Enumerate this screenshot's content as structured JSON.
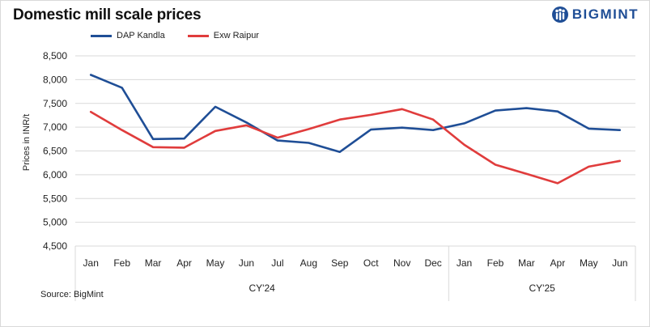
{
  "title": "Domestic mill scale prices",
  "logo": {
    "text": "BIGMINT",
    "icon": "bigmint-logo-icon"
  },
  "source": "Source: BigMint",
  "colors": {
    "dap": "#1f4e96",
    "exw": "#e03c3c",
    "grid": "#d9d9d9"
  },
  "chart_data": {
    "type": "line",
    "title": "Domestic mill scale prices",
    "ylabel": "Prices in INR/t",
    "xlabel": "",
    "ylim": [
      4500,
      8500
    ],
    "yticks": [
      "4,500",
      "5,000",
      "5,500",
      "6,000",
      "6,500",
      "7,000",
      "7,500",
      "8,000",
      "8,500"
    ],
    "ytick_values": [
      4500,
      5000,
      5500,
      6000,
      6500,
      7000,
      7500,
      8000,
      8500
    ],
    "categories": [
      "Jan",
      "Feb",
      "Mar",
      "Apr",
      "May",
      "Jun",
      "Jul",
      "Aug",
      "Sep",
      "Oct",
      "Nov",
      "Dec",
      "Jan",
      "Feb",
      "Mar",
      "Apr",
      "May",
      "Jun"
    ],
    "groups": [
      {
        "label": "CY'24",
        "count": 12
      },
      {
        "label": "CY'25",
        "count": 6
      }
    ],
    "legend_position": "top-left",
    "grid": true,
    "series": [
      {
        "name": "DAP Kandla",
        "color": "#1f4e96",
        "values": [
          8100,
          7830,
          6750,
          6760,
          7430,
          7100,
          6720,
          6670,
          6480,
          6950,
          6990,
          6940,
          7080,
          7350,
          7400,
          7330,
          6970,
          6940
        ]
      },
      {
        "name": "Exw Raipur",
        "color": "#e03c3c",
        "values": [
          7320,
          6940,
          6580,
          6570,
          6920,
          7040,
          6780,
          6960,
          7160,
          7260,
          7380,
          7160,
          6630,
          6210,
          6020,
          5820,
          6170,
          6290
        ]
      }
    ]
  }
}
